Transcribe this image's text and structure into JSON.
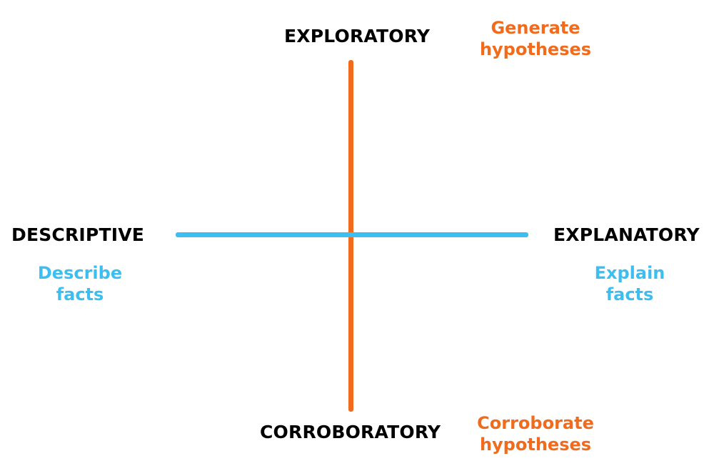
{
  "colors": {
    "vertical_axis": "#f26a1b",
    "horizontal_axis": "#3cbff0",
    "pole_label": "#000000"
  },
  "axes": {
    "vertical": {
      "top": {
        "label": "EXPLORATORY",
        "desc_line1": "Generate",
        "desc_line2": "hypotheses"
      },
      "bottom": {
        "label": "CORROBORATORY",
        "desc_line1": "Corroborate",
        "desc_line2": "hypotheses"
      }
    },
    "horizontal": {
      "left": {
        "label": "DESCRIPTIVE",
        "desc_line1": "Describe",
        "desc_line2": "facts"
      },
      "right": {
        "label": "EXPLANATORY",
        "desc_line1": "Explain",
        "desc_line2": "facts"
      }
    }
  }
}
